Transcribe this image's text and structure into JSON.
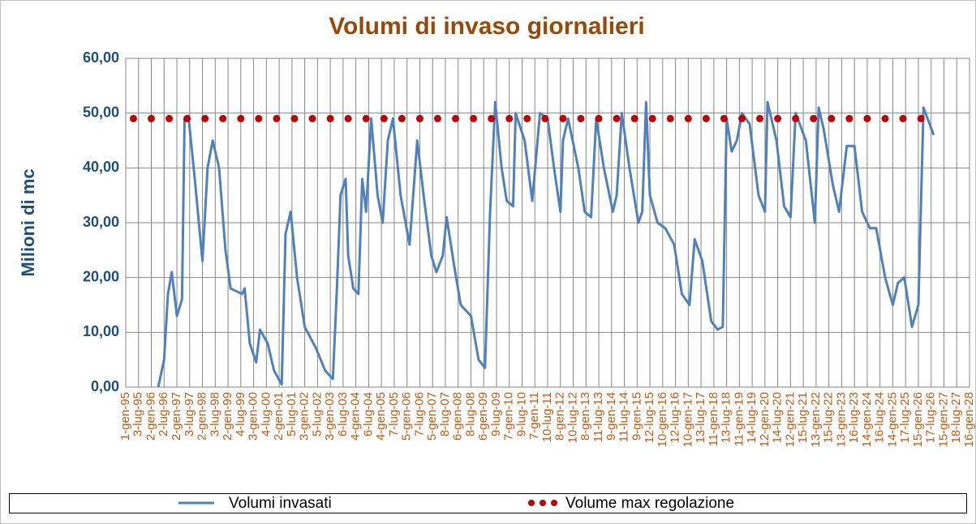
{
  "chart_data": {
    "type": "line",
    "title": "Volumi di invaso giornalieri",
    "y_label": "Milioni di mc",
    "ylim": [
      0,
      60
    ],
    "yticks": [
      {
        "value": 0,
        "label": "0,00"
      },
      {
        "value": 10,
        "label": "10,00"
      },
      {
        "value": 20,
        "label": "20,00"
      },
      {
        "value": 30,
        "label": "30,00"
      },
      {
        "value": 40,
        "label": "40,00"
      },
      {
        "value": 50,
        "label": "50,00"
      },
      {
        "value": 60,
        "label": "60,00"
      }
    ],
    "xlim": [
      1995,
      2028
    ],
    "xticks": [
      {
        "value": 1995,
        "label": "1-gen-95"
      },
      {
        "value": 1995.5,
        "label": "3-lug-95"
      },
      {
        "value": 1996,
        "label": "2-gen-96"
      },
      {
        "value": 1996.5,
        "label": "2-lug-96"
      },
      {
        "value": 1997,
        "label": "2-gen-97"
      },
      {
        "value": 1997.5,
        "label": "3-lug-97"
      },
      {
        "value": 1998,
        "label": "2-gen-98"
      },
      {
        "value": 1998.5,
        "label": "3-lug-98"
      },
      {
        "value": 1999,
        "label": "2-gen-99"
      },
      {
        "value": 1999.5,
        "label": "4-lug-99"
      },
      {
        "value": 2000,
        "label": "3-gen-00"
      },
      {
        "value": 2000.5,
        "label": "4-lug-00"
      },
      {
        "value": 2001,
        "label": "2-gen-01"
      },
      {
        "value": 2001.5,
        "label": "5-lug-01"
      },
      {
        "value": 2002,
        "label": "3-gen-02"
      },
      {
        "value": 2002.5,
        "label": "5-lug-02"
      },
      {
        "value": 2003,
        "label": "3-gen-03"
      },
      {
        "value": 2003.5,
        "label": "6-lug-03"
      },
      {
        "value": 2004,
        "label": "4-gen-04"
      },
      {
        "value": 2004.5,
        "label": "6-lug-04"
      },
      {
        "value": 2005,
        "label": "4-gen-05"
      },
      {
        "value": 2005.5,
        "label": "7-lug-05"
      },
      {
        "value": 2006,
        "label": "5-gen-06"
      },
      {
        "value": 2006.5,
        "label": "7-lug-06"
      },
      {
        "value": 2007,
        "label": "5-gen-07"
      },
      {
        "value": 2007.5,
        "label": "8-lug-07"
      },
      {
        "value": 2008,
        "label": "6-gen-08"
      },
      {
        "value": 2008.5,
        "label": "8-lug-08"
      },
      {
        "value": 2009,
        "label": "6-gen-09"
      },
      {
        "value": 2009.5,
        "label": "9-lug-09"
      },
      {
        "value": 2010,
        "label": "7-gen-10"
      },
      {
        "value": 2010.5,
        "label": "9-lug-10"
      },
      {
        "value": 2011,
        "label": "7-gen-11"
      },
      {
        "value": 2011.5,
        "label": "10-lug-11"
      },
      {
        "value": 2012,
        "label": "8-gen-12"
      },
      {
        "value": 2012.5,
        "label": "10-lug-12"
      },
      {
        "value": 2013,
        "label": "8-gen-13"
      },
      {
        "value": 2013.5,
        "label": "11-lug-13"
      },
      {
        "value": 2014,
        "label": "9-gen-14"
      },
      {
        "value": 2014.5,
        "label": "11-lug-14"
      },
      {
        "value": 2015,
        "label": "9-gen-15"
      },
      {
        "value": 2015.5,
        "label": "12-lug-15"
      },
      {
        "value": 2016,
        "label": "10-gen-16"
      },
      {
        "value": 2016.5,
        "label": "12-lug-16"
      },
      {
        "value": 2017,
        "label": "10-gen-17"
      },
      {
        "value": 2017.5,
        "label": "13-lug-17"
      },
      {
        "value": 2018,
        "label": "11-gen-18"
      },
      {
        "value": 2018.5,
        "label": "13-lug-18"
      },
      {
        "value": 2019,
        "label": "11-gen-19"
      },
      {
        "value": 2019.5,
        "label": "14-lug-19"
      },
      {
        "value": 2020,
        "label": "12-gen-20"
      },
      {
        "value": 2020.5,
        "label": "14-lug-20"
      },
      {
        "value": 2021,
        "label": "12-gen-21"
      },
      {
        "value": 2021.5,
        "label": "15-lug-21"
      },
      {
        "value": 2022,
        "label": "13-gen-22"
      },
      {
        "value": 2022.5,
        "label": "15-lug-22"
      },
      {
        "value": 2023,
        "label": "13-gen-23"
      },
      {
        "value": 2023.5,
        "label": "16-lug-23"
      },
      {
        "value": 2024,
        "label": "14-gen-24"
      },
      {
        "value": 2024.5,
        "label": "16-lug-24"
      },
      {
        "value": 2025,
        "label": "14-gen-25"
      },
      {
        "value": 2025.5,
        "label": "17-lug-25"
      },
      {
        "value": 2026,
        "label": "15-gen-26"
      },
      {
        "value": 2026.5,
        "label": "17-lug-26"
      },
      {
        "value": 2027,
        "label": "15-gen-27"
      },
      {
        "value": 2027.5,
        "label": "18-lug-27"
      },
      {
        "value": 2028,
        "label": "16-gen-28"
      }
    ],
    "grid": true,
    "series": [
      {
        "name": "Volumi invasati",
        "color": "#4f81bd",
        "style": "line",
        "x": [
          1996.27,
          1996.5,
          1996.65,
          1996.8,
          1997.0,
          1997.2,
          1997.3,
          1997.45,
          1997.7,
          1998.0,
          1998.2,
          1998.4,
          1998.65,
          1998.9,
          1999.1,
          1999.55,
          1999.65,
          1999.85,
          2000.1,
          2000.25,
          2000.55,
          2000.8,
          2001.1,
          2001.25,
          2001.45,
          2001.7,
          2002.0,
          2002.45,
          2002.8,
          2003.1,
          2003.25,
          2003.4,
          2003.6,
          2003.7,
          2003.9,
          2004.1,
          2004.25,
          2004.4,
          2004.6,
          2004.85,
          2005.05,
          2005.25,
          2005.45,
          2005.75,
          2006.1,
          2006.4,
          2006.65,
          2006.95,
          2007.15,
          2007.4,
          2007.55,
          2007.85,
          2008.1,
          2008.5,
          2008.8,
          2009.05,
          2009.25,
          2009.45,
          2009.7,
          2009.9,
          2010.15,
          2010.25,
          2010.6,
          2010.9,
          2011.2,
          2011.5,
          2011.75,
          2012.0,
          2012.1,
          2012.3,
          2012.7,
          2012.95,
          2013.2,
          2013.4,
          2013.7,
          2014.05,
          2014.2,
          2014.4,
          2014.7,
          2015.05,
          2015.2,
          2015.35,
          2015.5,
          2015.8,
          2016.1,
          2016.45,
          2016.75,
          2017.05,
          2017.25,
          2017.55,
          2017.9,
          2018.15,
          2018.35,
          2018.5,
          2018.7,
          2018.9,
          2019.1,
          2019.4,
          2019.75,
          2020.0,
          2020.1,
          2020.45,
          2020.75,
          2021.0,
          2021.2,
          2021.6,
          2021.95,
          2022.1,
          2022.3,
          2022.65,
          2022.9,
          2023.2,
          2023.5,
          2023.8,
          2024.1,
          2024.35,
          2024.7,
          2025.0,
          2025.2,
          2025.45,
          2025.75,
          2026.0,
          2026.2,
          2026.6
        ],
        "values": [
          0,
          5,
          17,
          21,
          13,
          16,
          49,
          49.5,
          38,
          23,
          40,
          45,
          40,
          25,
          18,
          17,
          18,
          8,
          4.5,
          10.5,
          8,
          3,
          0.5,
          28,
          32,
          20,
          11,
          7,
          3,
          1.5,
          17,
          35,
          38,
          24,
          18,
          17,
          38,
          32,
          49,
          35,
          30,
          45,
          49,
          35,
          26,
          45,
          35,
          24,
          21,
          24,
          31,
          22,
          15,
          13,
          5,
          3.5,
          32,
          52,
          40,
          34,
          33,
          50,
          45,
          34,
          50,
          49,
          40,
          32,
          45,
          49,
          40,
          32,
          31,
          49,
          40,
          32,
          35,
          50,
          40,
          30,
          32,
          52,
          35,
          30,
          29,
          26,
          17,
          15,
          27,
          23,
          12,
          10.5,
          11,
          49,
          43,
          45,
          50,
          48,
          35,
          32,
          52,
          45,
          33,
          31,
          50,
          45,
          30,
          51,
          47,
          37,
          32,
          44,
          44,
          32,
          29,
          29,
          20,
          15,
          19,
          20,
          11,
          15,
          51,
          46
        ]
      },
      {
        "name": "Volume max regolazione",
        "color": "#c00000",
        "style": "dots",
        "x": [
          1995.3,
          1996,
          1996.7,
          1997.4,
          1998.1,
          1998.8,
          1999.5,
          2000.2,
          2000.9,
          2001.6,
          2002.3,
          2003,
          2003.7,
          2004.4,
          2005.1,
          2005.8,
          2006.5,
          2007.2,
          2007.9,
          2008.6,
          2009.3,
          2010,
          2010.7,
          2011.4,
          2012.1,
          2012.8,
          2013.5,
          2014.2,
          2014.9,
          2015.6,
          2016.3,
          2017,
          2017.7,
          2018.4,
          2019.1,
          2019.8,
          2020.5,
          2021.2,
          2021.9,
          2022.6,
          2023.3,
          2024,
          2024.7,
          2025.4,
          2026.1
        ],
        "values": [
          49,
          49,
          49,
          49,
          49,
          49,
          49,
          49,
          49,
          49,
          49,
          49,
          49,
          49,
          49,
          49,
          49,
          49,
          49,
          49,
          49,
          49,
          49,
          49,
          49,
          49,
          49,
          49,
          49,
          49,
          49,
          49,
          49,
          49,
          49,
          49,
          49,
          49,
          49,
          49,
          49,
          49,
          49,
          49,
          49
        ]
      }
    ]
  }
}
